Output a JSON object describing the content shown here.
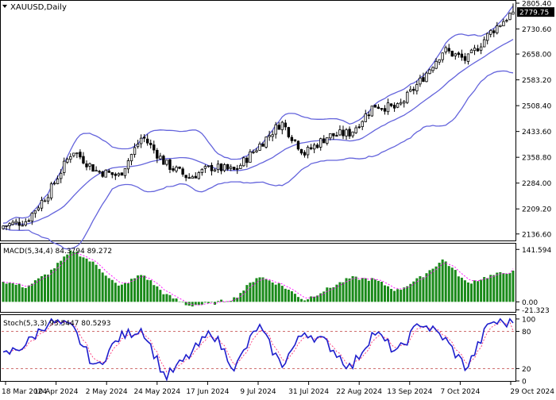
{
  "window": {
    "title": "XAUUSD,Daily",
    "title_icon": "chevron-down-icon"
  },
  "colors": {
    "background": "#ffffff",
    "frame": "#000000",
    "candle": "#000000",
    "bollinger": "#6464dc",
    "macd_histogram": "#1a8a1a",
    "macd_signal": "#ff00ff",
    "stoch_main": "#1e1ecc",
    "stoch_signal": "#ff3377",
    "level_line": "#c04040",
    "price_label_bg": "#000000",
    "price_label_text": "#ffffff"
  },
  "main_panel": {
    "symbol": "XAUUSD",
    "timeframe": "Daily",
    "current_price": "2779.75",
    "price_axis": {
      "min": 2120,
      "max": 2810,
      "ticks": [
        "2805.40",
        "2730.60",
        "2658.00",
        "2583.20",
        "2508.40",
        "2433.60",
        "2358.80",
        "2284.00",
        "2209.20",
        "2136.60"
      ]
    },
    "indicator": "Bollinger Bands"
  },
  "macd_panel": {
    "label": "MACD(5,34,4) 84.3794 89.272",
    "axis": {
      "min": -25,
      "max": 155,
      "ticks": [
        "141.594",
        "0.00",
        "-21.323"
      ]
    }
  },
  "stoch_panel": {
    "label": "Stoch(5,3,3) 93.5447 80.5293",
    "axis": {
      "min": 0,
      "max": 105,
      "ticks": [
        "100",
        "80",
        "20",
        "0"
      ]
    },
    "levels": [
      80,
      20
    ]
  },
  "time_axis": {
    "labels": [
      "18 Mar 2024",
      "10 Apr 2024",
      "2 May 2024",
      "24 May 2024",
      "17 Jun 2024",
      "9 Jul 2024",
      "31 Jul 2024",
      "22 Aug 2024",
      "13 Sep 2024",
      "7 Oct 2024",
      "29 Oct 2024"
    ]
  },
  "chart_data": {
    "type": "line",
    "x_range": [
      "18 Mar 2024",
      "29 Oct 2024"
    ],
    "anchor_dates": [
      "18 Mar 2024",
      "25 Mar 2024",
      "1 Apr 2024",
      "12 Apr 2024",
      "22 Apr 2024",
      "2 May 2024",
      "15 May 2024",
      "24 May 2024",
      "7 Jun 2024",
      "17 Jun 2024",
      "26 Jun 2024",
      "9 Jul 2024",
      "17 Jul 2024",
      "25 Jul 2024",
      "31 Jul 2024",
      "8 Aug 2024",
      "20 Aug 2024",
      "30 Aug 2024",
      "13 Sep 2024",
      "26 Sep 2024",
      "7 Oct 2024",
      "18 Oct 2024",
      "29 Oct 2024"
    ],
    "series": [
      {
        "values": [
          2160,
          2175,
          2260,
          2380,
          2320,
          2305,
          2420,
          2340,
          2300,
          2330,
          2320,
          2390,
          2460,
          2370,
          2420,
          2430,
          2510,
          2500,
          2580,
          2670,
          2640,
          2720,
          2779.75
        ]
      }
    ],
    "ylim": [
      2120,
      2810
    ],
    "macd": {
      "ylim": [
        -25,
        155
      ],
      "last_main": 84.3794,
      "last_signal": 89.272,
      "values": [
        55,
        40,
        80,
        140,
        100,
        40,
        75,
        20,
        -10,
        -5,
        10,
        70,
        45,
        5,
        35,
        65,
        60,
        30,
        65,
        115,
        50,
        70,
        84
      ]
    },
    "stochastic": {
      "ylim": [
        0,
        105
      ],
      "last_main": 93.5447,
      "last_signal": 80.5293,
      "levels": [
        80,
        20
      ],
      "values": [
        40,
        60,
        97,
        85,
        20,
        70,
        85,
        5,
        40,
        80,
        20,
        90,
        25,
        80,
        60,
        20,
        80,
        45,
        95,
        70,
        20,
        95,
        93.5
      ]
    }
  }
}
